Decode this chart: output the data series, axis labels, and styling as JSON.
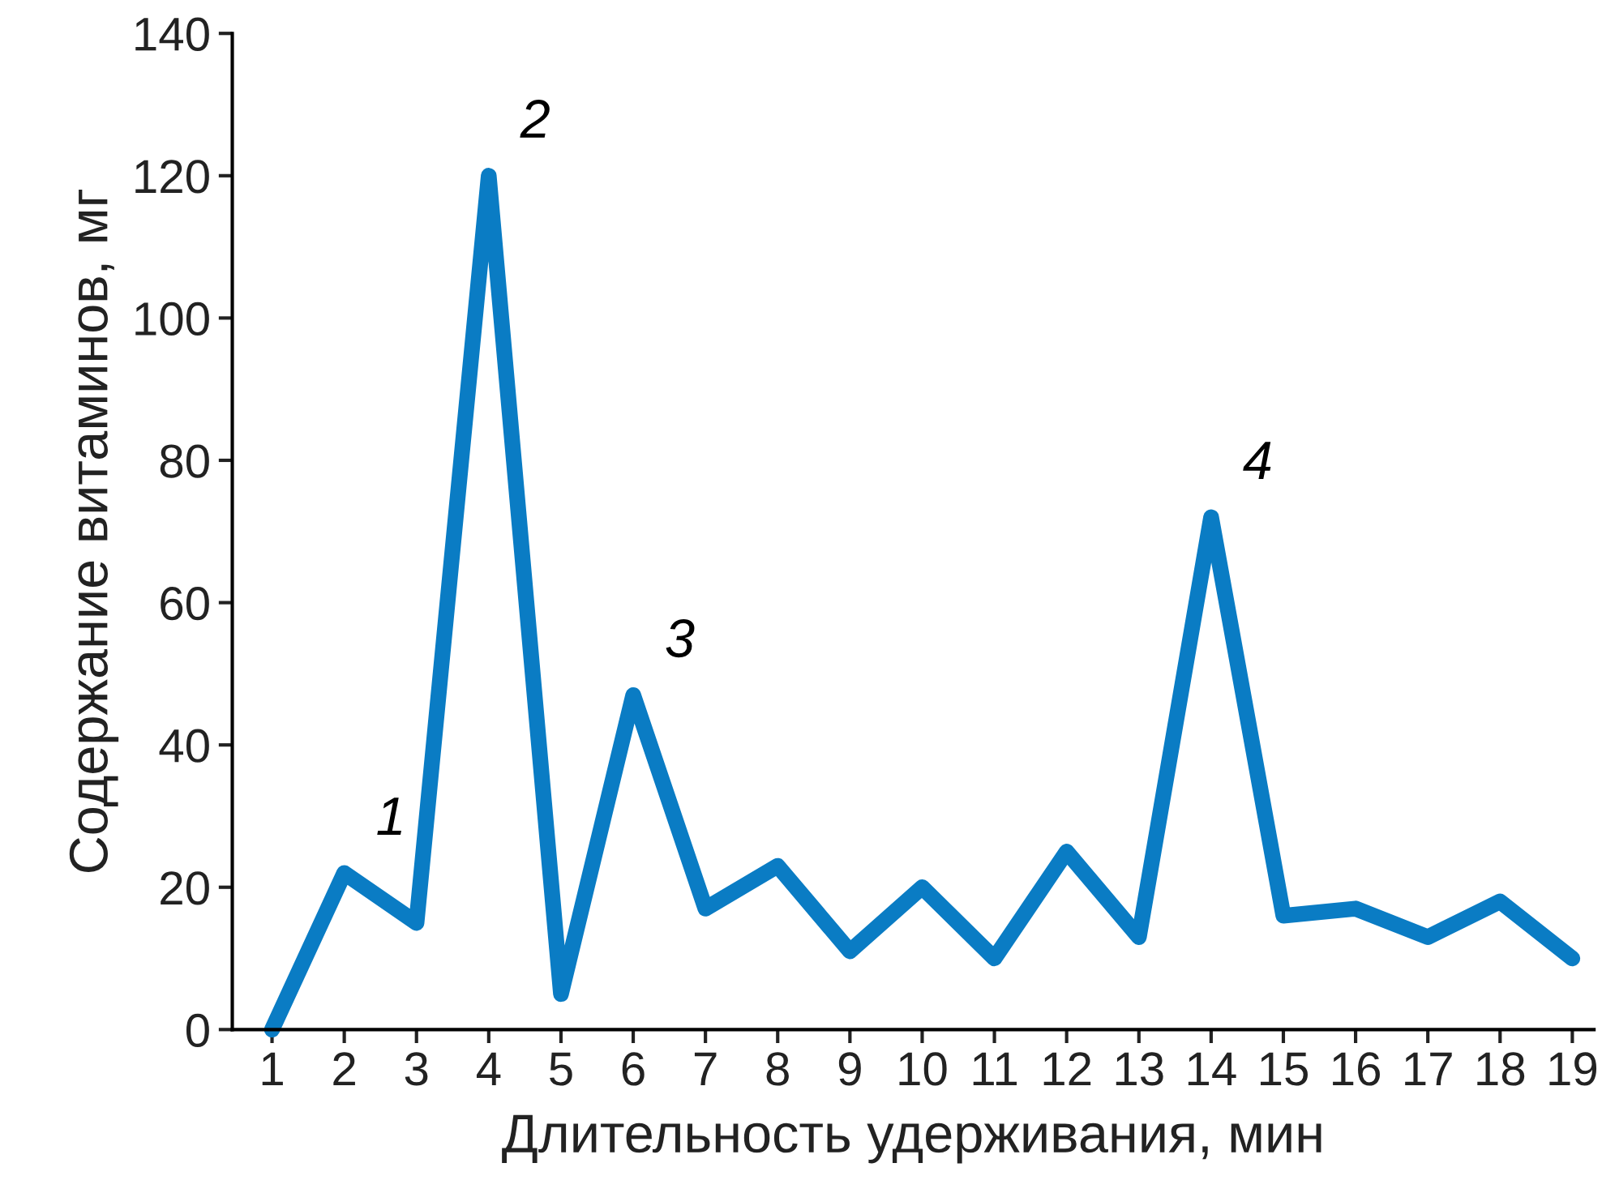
{
  "chart_data": {
    "type": "line",
    "xlabel": "Длительность удерживания, мин",
    "ylabel": "Содержание витаминов, мг",
    "x": [
      1,
      2,
      3,
      4,
      5,
      6,
      7,
      8,
      9,
      10,
      11,
      12,
      13,
      14,
      15,
      16,
      17,
      18,
      19
    ],
    "series": [
      {
        "color": "#0a7cc4",
        "values": [
          0,
          22,
          15,
          120,
          5,
          47,
          17,
          23,
          11,
          20,
          10,
          25,
          13,
          72,
          16,
          17,
          13,
          18,
          10
        ]
      }
    ],
    "xlim": [
      0.45,
      19.3
    ],
    "xticks": [
      1,
      2,
      3,
      4,
      5,
      6,
      7,
      8,
      9,
      10,
      11,
      12,
      13,
      14,
      15,
      16,
      17,
      18,
      19
    ],
    "ylim": [
      0,
      140
    ],
    "yticks": [
      0,
      20,
      40,
      60,
      80,
      100,
      120,
      140
    ],
    "annotations": [
      {
        "text": "1",
        "x": 2,
        "y": 22
      },
      {
        "text": "2",
        "x": 4,
        "y": 120
      },
      {
        "text": "3",
        "x": 6,
        "y": 47
      },
      {
        "text": "4",
        "x": 14,
        "y": 72
      }
    ],
    "grid": false,
    "marker": "none",
    "line_style": "solid"
  }
}
